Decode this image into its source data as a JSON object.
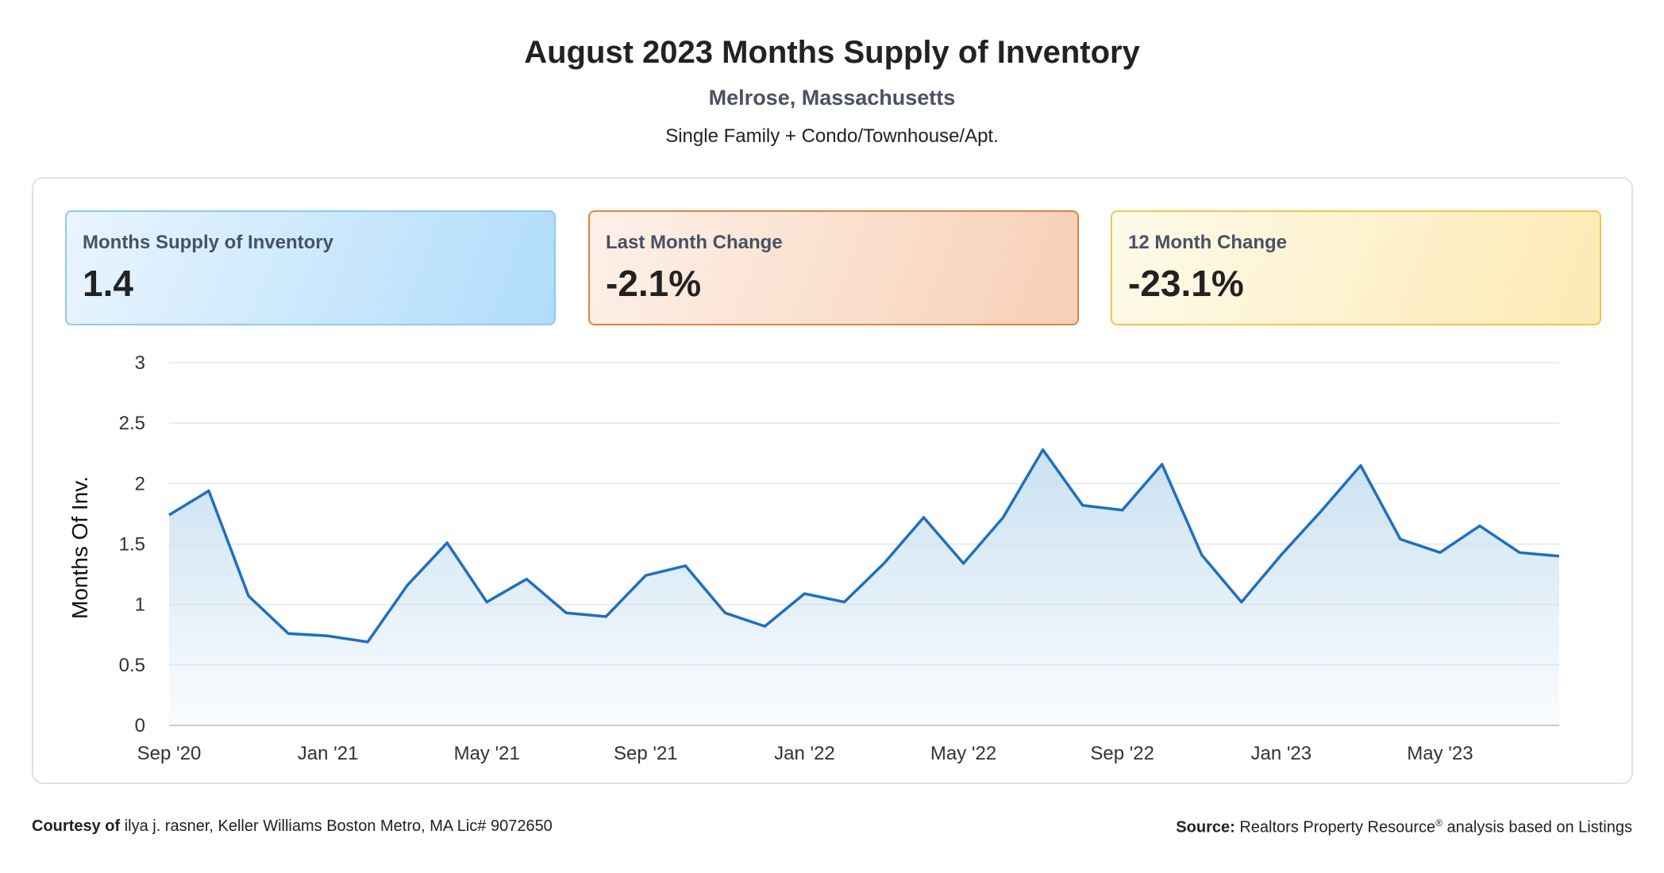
{
  "header": {
    "title": "August 2023 Months Supply of Inventory",
    "location": "Melrose, Massachusetts",
    "property_types": "Single Family + Condo/Townhouse/Apt."
  },
  "cards": [
    {
      "label": "Months Supply of Inventory",
      "value": "1.4"
    },
    {
      "label": "Last Month Change",
      "value": "-2.1%"
    },
    {
      "label": "12 Month Change",
      "value": "-23.1%"
    }
  ],
  "chart_data": {
    "type": "area",
    "ylabel": "Months Of Inv.",
    "ylim": [
      0,
      3
    ],
    "yticks": [
      0,
      0.5,
      1,
      1.5,
      2,
      2.5,
      3
    ],
    "x": [
      "Sep '20",
      "Oct '20",
      "Nov '20",
      "Dec '20",
      "Jan '21",
      "Feb '21",
      "Mar '21",
      "Apr '21",
      "May '21",
      "Jun '21",
      "Jul '21",
      "Aug '21",
      "Sep '21",
      "Oct '21",
      "Nov '21",
      "Dec '21",
      "Jan '22",
      "Feb '22",
      "Mar '22",
      "Apr '22",
      "May '22",
      "Jun '22",
      "Jul '22",
      "Aug '22",
      "Sep '22",
      "Oct '22",
      "Nov '22",
      "Dec '22",
      "Jan '23",
      "Feb '23",
      "Mar '23",
      "Apr '23",
      "May '23",
      "Jun '23",
      "Jul '23",
      "Aug '23"
    ],
    "xtick_labels": [
      "Sep '20",
      "Jan '21",
      "May '21",
      "Sep '21",
      "Jan '22",
      "May '22",
      "Sep '22",
      "Jan '23",
      "May '23"
    ],
    "xtick_every": 4,
    "series": [
      {
        "values": [
          1.74,
          1.94,
          1.07,
          0.76,
          0.74,
          0.69,
          1.16,
          1.51,
          1.02,
          1.21,
          0.93,
          0.9,
          1.24,
          1.32,
          0.93,
          0.82,
          1.09,
          1.02,
          1.34,
          1.72,
          1.34,
          1.72,
          2.28,
          1.82,
          1.78,
          2.16,
          1.41,
          1.02,
          1.41,
          1.77,
          2.15,
          1.54,
          1.43,
          1.65,
          1.43,
          1.4
        ]
      }
    ],
    "grid": true,
    "line_color": "#1f6fbf",
    "fill_color": "#c7dff0"
  },
  "footer": {
    "courtesy_label": "Courtesy of",
    "courtesy_text": "ilya j. rasner, Keller Williams Boston Metro, MA Lic# 9072650",
    "source_label": "Source:",
    "source_text": "Realtors Property Resource",
    "source_sup": "®",
    "source_tail": "analysis based on Listings"
  }
}
